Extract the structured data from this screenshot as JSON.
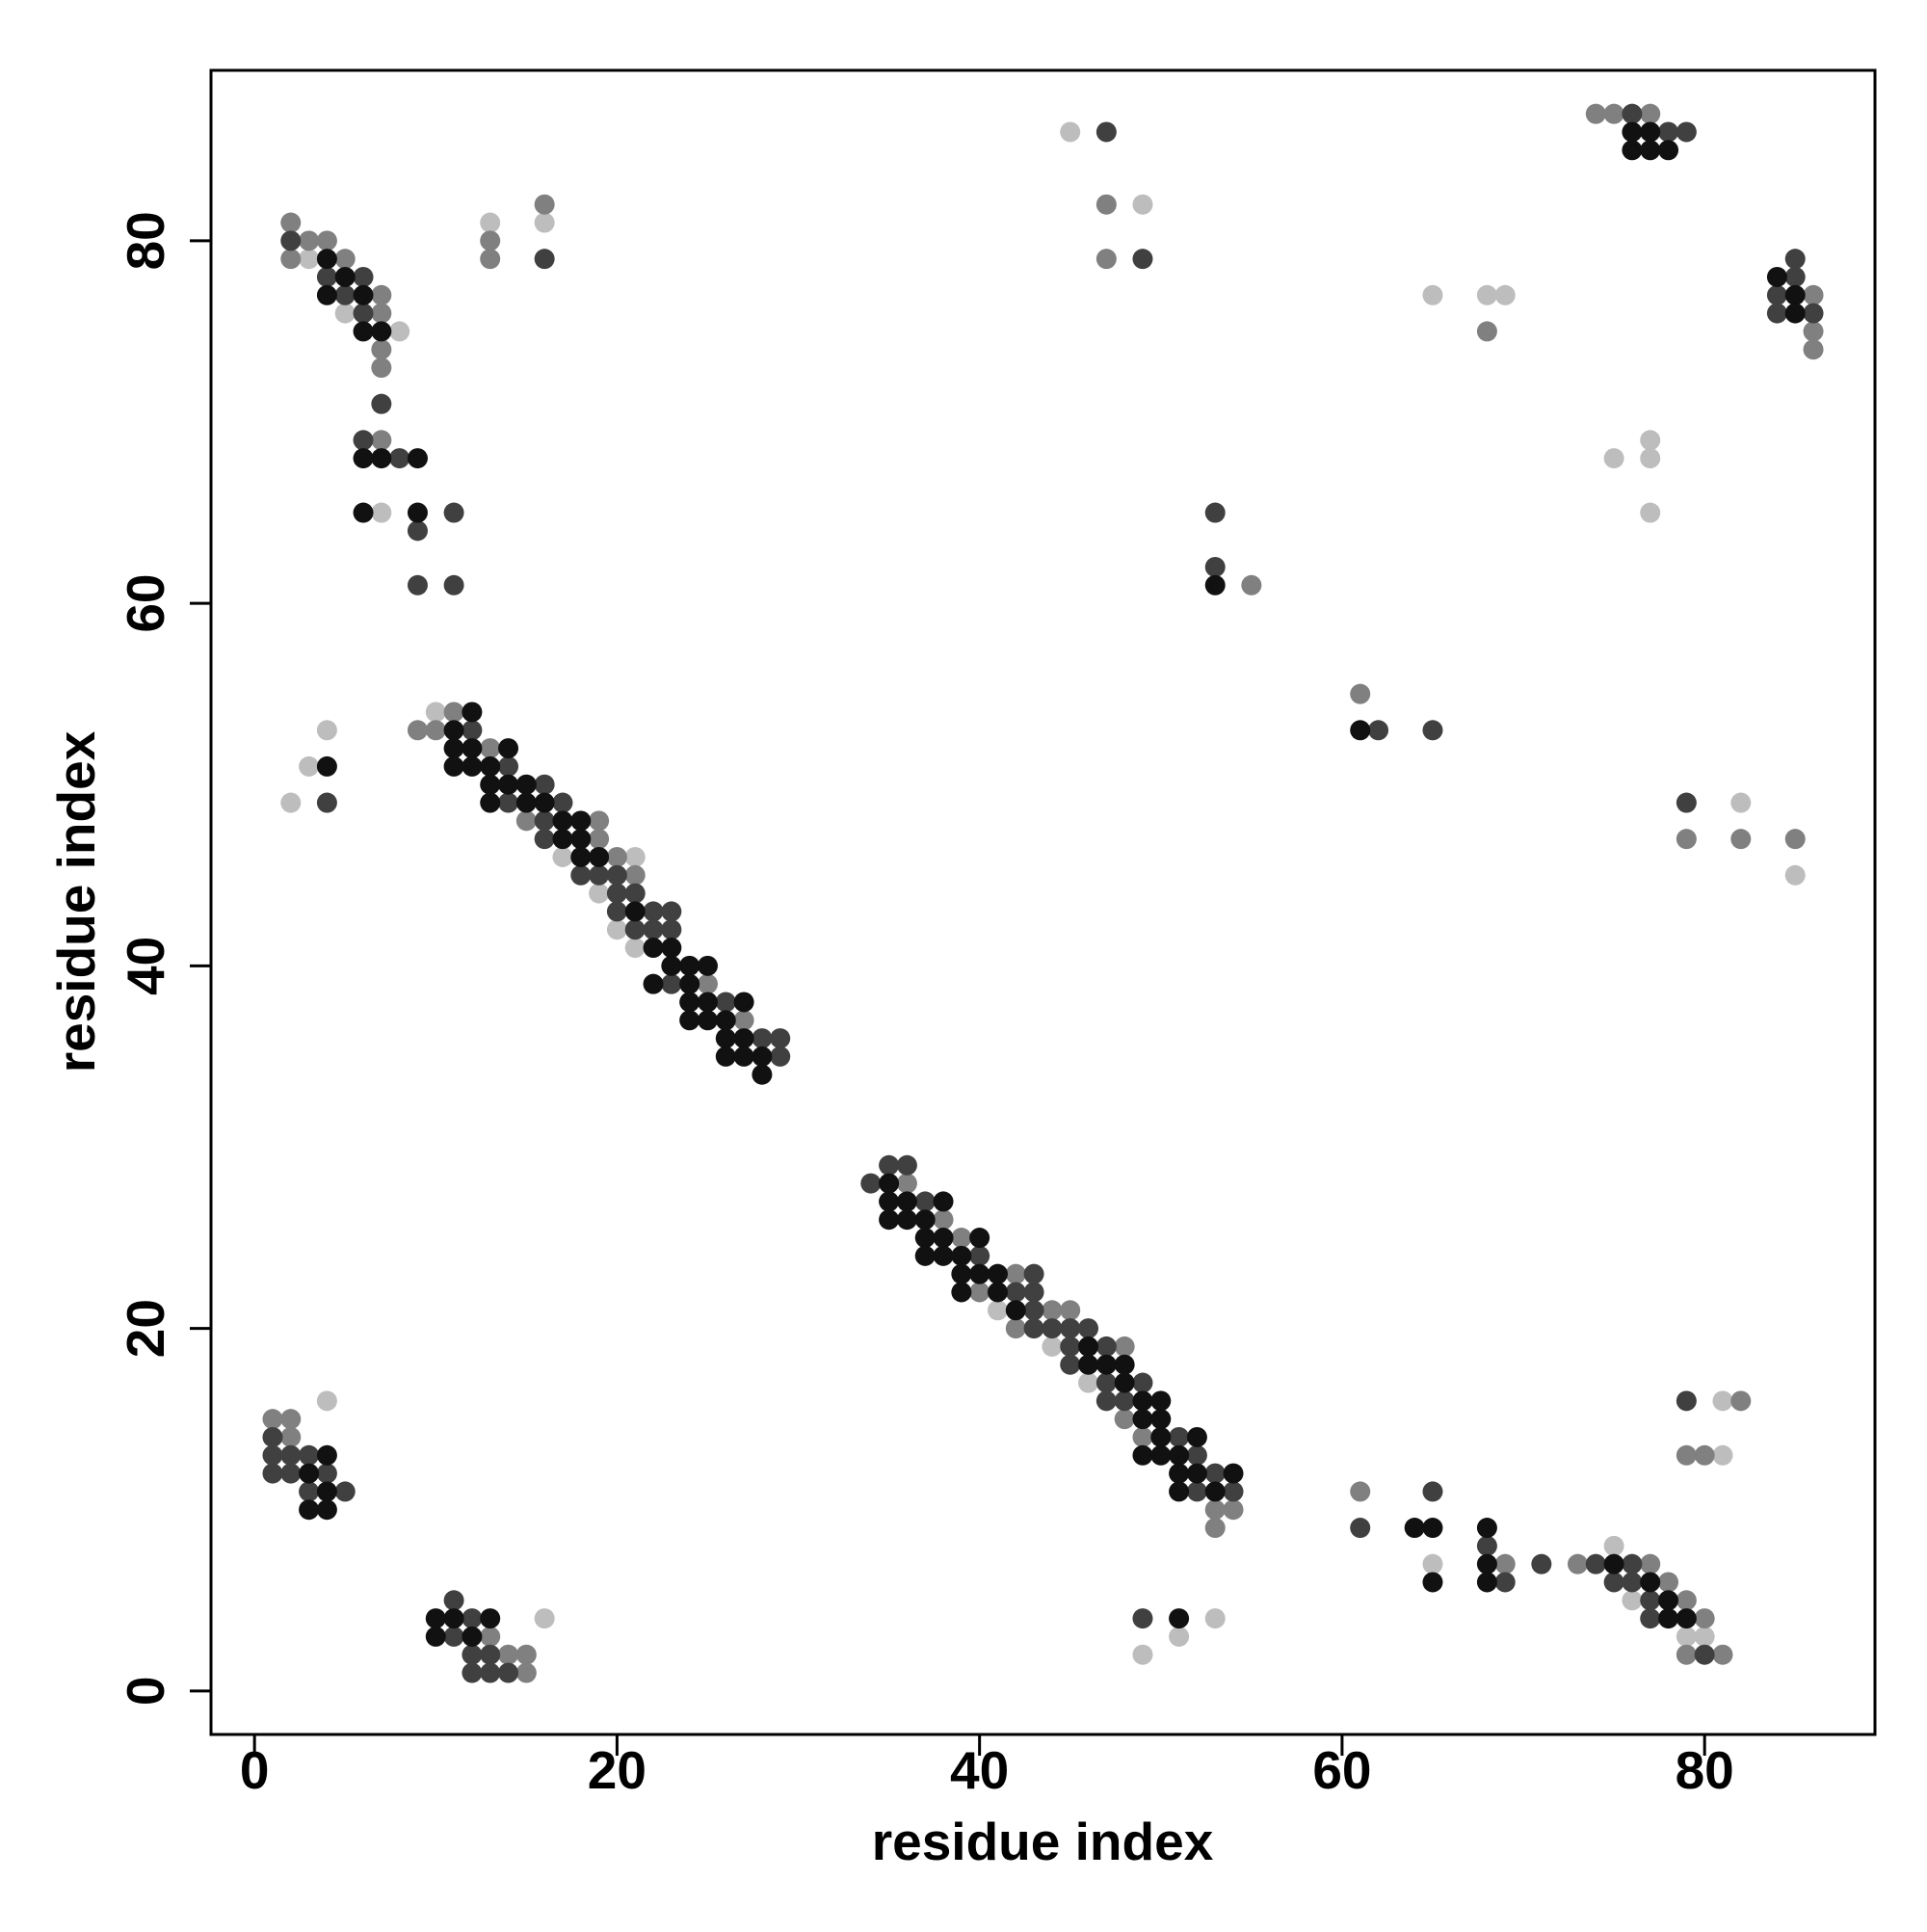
{
  "chart_data": {
    "type": "scatter",
    "xlabel": "residue index",
    "ylabel": "residue index",
    "xlim": [
      -2.4,
      89.4
    ],
    "ylim": [
      -2.4,
      89.4
    ],
    "xticks": [
      0,
      20,
      40,
      60,
      80
    ],
    "yticks": [
      0,
      20,
      40,
      60,
      80
    ],
    "series": [
      {
        "color": "#bdbdbd",
        "x": [
          4,
          16,
          3,
          5,
          8,
          7,
          13,
          16,
          4,
          3,
          2,
          10,
          17,
          21,
          19,
          20,
          21,
          41,
          44,
          46,
          53,
          51,
          49,
          65,
          75,
          76,
          79,
          80,
          81,
          81,
          82,
          85,
          75,
          77,
          77,
          77,
          65,
          68,
          69,
          45,
          49
        ],
        "y": [
          16,
          4,
          79,
          76,
          75,
          65,
          81,
          81,
          53,
          51,
          49,
          54,
          46,
          46,
          44,
          42,
          41,
          21,
          19,
          17,
          4,
          3,
          2,
          7,
          8,
          5,
          3,
          3,
          16,
          13,
          49,
          45,
          68,
          69,
          68,
          65,
          77,
          77,
          77,
          86,
          82
        ]
      },
      {
        "color": "#808080",
        "x": [
          1,
          2,
          2,
          13,
          14,
          15,
          15,
          2,
          3,
          4,
          2,
          5,
          7,
          7,
          7,
          7,
          7,
          13,
          13,
          16,
          11,
          9,
          10,
          13,
          15,
          19,
          19,
          20,
          21,
          25,
          27,
          36,
          38,
          39,
          42,
          40,
          44,
          45,
          42,
          48,
          48,
          49,
          53,
          54,
          53,
          61,
          69,
          73,
          77,
          78,
          79,
          80,
          79,
          81,
          79,
          80,
          82,
          79,
          82,
          85,
          61,
          55,
          68,
          86,
          86,
          86,
          74,
          75,
          77,
          47,
          47
        ],
        "y": [
          15,
          15,
          14,
          3,
          2,
          2,
          1,
          81,
          80,
          80,
          79,
          79,
          77,
          76,
          74,
          73,
          69,
          80,
          79,
          82,
          54,
          53,
          53,
          52,
          48,
          48,
          47,
          46,
          45,
          39,
          37,
          28,
          26,
          25,
          23,
          22,
          21,
          21,
          20,
          19,
          15,
          14,
          10,
          10,
          9,
          11,
          7,
          7,
          7,
          6,
          5,
          4,
          2,
          2,
          13,
          13,
          16,
          47,
          47,
          47,
          55,
          61,
          75,
          77,
          75,
          74,
          87,
          87,
          87,
          82,
          79
        ]
      },
      {
        "color": "#404040",
        "x": [
          1,
          1,
          2,
          3,
          1,
          2,
          4,
          3,
          5,
          11,
          12,
          11,
          12,
          13,
          12,
          13,
          14,
          2,
          4,
          6,
          5,
          6,
          7,
          6,
          8,
          11,
          9,
          9,
          11,
          16,
          4,
          12,
          14,
          16,
          14,
          17,
          16,
          16,
          18,
          19,
          20,
          20,
          21,
          20,
          22,
          23,
          21,
          22,
          23,
          23,
          26,
          28,
          29,
          29,
          35,
          36,
          34,
          37,
          40,
          43,
          42,
          43,
          43,
          43,
          44,
          45,
          46,
          45,
          47,
          45,
          47,
          49,
          47,
          48,
          51,
          52,
          53,
          52,
          54,
          49,
          61,
          65,
          68,
          69,
          71,
          74,
          76,
          75,
          76,
          77,
          77,
          80,
          79,
          79,
          62,
          65,
          53,
          53,
          84,
          84,
          85,
          85,
          86,
          76,
          78,
          79,
          47,
          49
        ],
        "y": [
          14,
          13,
          13,
          13,
          12,
          12,
          12,
          11,
          11,
          5,
          4,
          3,
          2,
          2,
          1,
          1,
          1,
          80,
          78,
          78,
          77,
          76,
          71,
          69,
          68,
          65,
          64,
          61,
          61,
          79,
          49,
          53,
          51,
          50,
          49,
          49,
          48,
          47,
          45,
          45,
          45,
          44,
          44,
          43,
          43,
          43,
          42,
          42,
          42,
          39,
          38,
          36,
          36,
          35,
          29,
          29,
          28,
          27,
          24,
          23,
          22,
          22,
          21,
          20,
          20,
          20,
          20,
          19,
          19,
          18,
          17,
          17,
          16,
          16,
          14,
          13,
          12,
          11,
          11,
          4,
          9,
          11,
          8,
          6,
          7,
          7,
          7,
          6,
          6,
          5,
          4,
          2,
          16,
          49,
          53,
          53,
          65,
          62,
          77,
          76,
          79,
          78,
          76,
          87,
          86,
          86,
          86,
          79
        ]
      },
      {
        "color": "#111111",
        "x": [
          4,
          3,
          4,
          3,
          4,
          10,
          11,
          13,
          10,
          12,
          4,
          5,
          4,
          6,
          6,
          7,
          6,
          7,
          9,
          6,
          9,
          4,
          12,
          11,
          11,
          12,
          14,
          11,
          12,
          13,
          13,
          14,
          15,
          13,
          15,
          16,
          17,
          18,
          17,
          18,
          18,
          19,
          21,
          22,
          23,
          23,
          24,
          25,
          22,
          24,
          24,
          25,
          27,
          24,
          25,
          26,
          26,
          27,
          26,
          27,
          28,
          28,
          35,
          35,
          36,
          38,
          35,
          36,
          37,
          37,
          38,
          40,
          37,
          38,
          39,
          39,
          40,
          41,
          39,
          41,
          42,
          46,
          46,
          47,
          48,
          48,
          49,
          50,
          49,
          50,
          50,
          52,
          49,
          50,
          51,
          51,
          52,
          54,
          51,
          53,
          51,
          64,
          65,
          65,
          68,
          68,
          68,
          75,
          77,
          78,
          78,
          79,
          61,
          53,
          84,
          85,
          85,
          76,
          77,
          76,
          77,
          78
        ],
        "y": [
          13,
          12,
          11,
          10,
          10,
          4,
          4,
          4,
          3,
          3,
          79,
          78,
          77,
          77,
          75,
          75,
          68,
          68,
          68,
          65,
          65,
          51,
          54,
          53,
          52,
          52,
          52,
          51,
          51,
          51,
          50,
          50,
          50,
          49,
          49,
          49,
          48,
          48,
          47,
          47,
          46,
          46,
          43,
          41,
          41,
          40,
          40,
          40,
          39,
          39,
          38,
          38,
          38,
          37,
          37,
          37,
          36,
          36,
          35,
          35,
          35,
          34,
          28,
          27,
          27,
          27,
          26,
          26,
          26,
          25,
          25,
          25,
          24,
          24,
          24,
          23,
          23,
          23,
          22,
          22,
          21,
          19,
          18,
          18,
          18,
          17,
          16,
          16,
          15,
          15,
          14,
          14,
          13,
          13,
          13,
          12,
          12,
          12,
          11,
          11,
          4,
          9,
          9,
          6,
          9,
          7,
          6,
          7,
          6,
          5,
          4,
          4,
          53,
          61,
          78,
          77,
          76,
          86,
          86,
          85,
          85,
          85
        ]
      }
    ]
  }
}
